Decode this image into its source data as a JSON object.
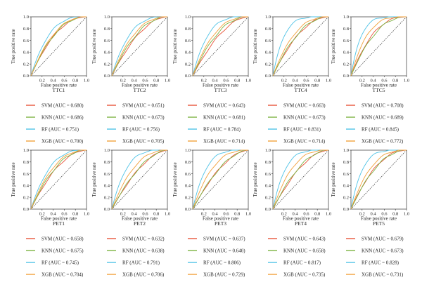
{
  "chart_data": [
    {
      "type": "line",
      "title": "TTC1",
      "xlabel": "False positive rate",
      "ylabel": "True positive rate",
      "xlim": [
        0,
        1
      ],
      "ylim": [
        0,
        1
      ],
      "x_ticks": [
        "0.2",
        "0.4",
        "0.6",
        "0.8",
        "1.0"
      ],
      "y_ticks": [
        "0.0",
        "0.2",
        "0.4",
        "0.6",
        "0.8",
        "1.0"
      ],
      "series": [
        {
          "name": "SVM (AUC = 0.680)",
          "auc": 0.68,
          "color": "#e8553a"
        },
        {
          "name": "KNN (AUC = 0.686)",
          "auc": 0.686,
          "color": "#7cb342"
        },
        {
          "name": "RF (AUC = 0.751)",
          "auc": 0.751,
          "color": "#4fc3e6"
        },
        {
          "name": "XGB (AUC = 0.700)",
          "auc": 0.7,
          "color": "#f2a13b"
        }
      ]
    },
    {
      "type": "line",
      "title": "TTC2",
      "xlabel": "False positive rate",
      "ylabel": "True positive rate",
      "xlim": [
        0,
        1
      ],
      "ylim": [
        0,
        1
      ],
      "x_ticks": [
        "0.2",
        "0.4",
        "0.6",
        "0.8",
        "1.0"
      ],
      "y_ticks": [
        "0.0",
        "0.2",
        "0.4",
        "0.6",
        "0.8",
        "1.0"
      ],
      "series": [
        {
          "name": "SVM (AUC = 0.651)",
          "auc": 0.651,
          "color": "#e8553a"
        },
        {
          "name": "KNN (AUC = 0.673)",
          "auc": 0.673,
          "color": "#7cb342"
        },
        {
          "name": "RF (AUC = 0.756)",
          "auc": 0.756,
          "color": "#4fc3e6"
        },
        {
          "name": "XGB (AUC = 0.705)",
          "auc": 0.705,
          "color": "#f2a13b"
        }
      ]
    },
    {
      "type": "line",
      "title": "TTC3",
      "xlabel": "False positive rate",
      "ylabel": "True positive rate",
      "xlim": [
        0,
        1
      ],
      "ylim": [
        0,
        1
      ],
      "x_ticks": [
        "0.2",
        "0.4",
        "0.6",
        "0.8",
        "1.0"
      ],
      "y_ticks": [
        "0.0",
        "0.2",
        "0.4",
        "0.6",
        "0.8",
        "1.0"
      ],
      "series": [
        {
          "name": "SVM (AUC = 0.643)",
          "auc": 0.643,
          "color": "#e8553a"
        },
        {
          "name": "KNN (AUC = 0.681)",
          "auc": 0.681,
          "color": "#7cb342"
        },
        {
          "name": "RF (AUC = 0.784)",
          "auc": 0.784,
          "color": "#4fc3e6"
        },
        {
          "name": "XGB (AUC = 0.714)",
          "auc": 0.714,
          "color": "#f2a13b"
        }
      ]
    },
    {
      "type": "line",
      "title": "TTC4",
      "xlabel": "False positive rate",
      "ylabel": "True positive rate",
      "xlim": [
        0,
        1
      ],
      "ylim": [
        0,
        1
      ],
      "x_ticks": [
        "0.2",
        "0.4",
        "0.6",
        "0.8",
        "1.0"
      ],
      "y_ticks": [
        "0.0",
        "0.2",
        "0.4",
        "0.6",
        "0.8",
        "1.0"
      ],
      "series": [
        {
          "name": "SVM (AUC = 0.663)",
          "auc": 0.663,
          "color": "#e8553a"
        },
        {
          "name": "KNN (AUC = 0.673)",
          "auc": 0.673,
          "color": "#7cb342"
        },
        {
          "name": "RF (AUC = 0.831)",
          "auc": 0.831,
          "color": "#4fc3e6"
        },
        {
          "name": "XGB (AUC = 0.714)",
          "auc": 0.714,
          "color": "#f2a13b"
        }
      ]
    },
    {
      "type": "line",
      "title": "TTC5",
      "xlabel": "False positive rate",
      "ylabel": "True positive rate",
      "xlim": [
        0,
        1
      ],
      "ylim": [
        0,
        1
      ],
      "x_ticks": [
        "0.2",
        "0.4",
        "0.6",
        "0.8",
        "1.0"
      ],
      "y_ticks": [
        "0.0",
        "0.2",
        "0.4",
        "0.6",
        "0.8",
        "1.0"
      ],
      "series": [
        {
          "name": "SVM (AUC = 0.708)",
          "auc": 0.708,
          "color": "#e8553a"
        },
        {
          "name": "KNN (AUC = 0.689)",
          "auc": 0.689,
          "color": "#7cb342"
        },
        {
          "name": "RF (AUC = 0.845)",
          "auc": 0.845,
          "color": "#4fc3e6"
        },
        {
          "name": "XGB (AUC = 0.772)",
          "auc": 0.772,
          "color": "#f2a13b"
        }
      ]
    },
    {
      "type": "line",
      "title": "PET1",
      "xlabel": "False positive rate",
      "ylabel": "True positive rate",
      "xlim": [
        0,
        1
      ],
      "ylim": [
        0,
        1
      ],
      "x_ticks": [
        "0.2",
        "0.4",
        "0.6",
        "0.8",
        "1.0"
      ],
      "y_ticks": [
        "0.0",
        "0.2",
        "0.4",
        "0.6",
        "0.8",
        "1.0"
      ],
      "series": [
        {
          "name": "SVM (AUC = 0.658)",
          "auc": 0.658,
          "color": "#e8553a"
        },
        {
          "name": "KNN (AUC = 0.675)",
          "auc": 0.675,
          "color": "#7cb342"
        },
        {
          "name": "RF (AUC = 0.745)",
          "auc": 0.745,
          "color": "#4fc3e6"
        },
        {
          "name": "XGB (AUC = 0.704)",
          "auc": 0.704,
          "color": "#f2a13b"
        }
      ]
    },
    {
      "type": "line",
      "title": "PET2",
      "xlabel": "False positive rate",
      "ylabel": "True positive rate",
      "xlim": [
        0,
        1
      ],
      "ylim": [
        0,
        1
      ],
      "x_ticks": [
        "0.2",
        "0.4",
        "0.6",
        "0.8",
        "1.0"
      ],
      "y_ticks": [
        "0.0",
        "0.2",
        "0.4",
        "0.6",
        "0.8",
        "1.0"
      ],
      "series": [
        {
          "name": "SVM (AUC = 0.632)",
          "auc": 0.632,
          "color": "#e8553a"
        },
        {
          "name": "KNN (AUC = 0.638)",
          "auc": 0.638,
          "color": "#7cb342"
        },
        {
          "name": "RF (AUC = 0.791)",
          "auc": 0.791,
          "color": "#4fc3e6"
        },
        {
          "name": "XGB (AUC = 0.706)",
          "auc": 0.706,
          "color": "#f2a13b"
        }
      ]
    },
    {
      "type": "line",
      "title": "PET3",
      "xlabel": "False positive rate",
      "ylabel": "True positive rate",
      "xlim": [
        0,
        1
      ],
      "ylim": [
        0,
        1
      ],
      "x_ticks": [
        "0.2",
        "0.4",
        "0.6",
        "0.8",
        "1.0"
      ],
      "y_ticks": [
        "0.0",
        "0.2",
        "0.4",
        "0.6",
        "0.8",
        "1.0"
      ],
      "series": [
        {
          "name": "SVM (AUC = 0.637)",
          "auc": 0.637,
          "color": "#e8553a"
        },
        {
          "name": "KNN (AUC = 0.640)",
          "auc": 0.64,
          "color": "#7cb342"
        },
        {
          "name": "RF (AUC = 0.806)",
          "auc": 0.806,
          "color": "#4fc3e6"
        },
        {
          "name": "XGB (AUC = 0.729)",
          "auc": 0.729,
          "color": "#f2a13b"
        }
      ]
    },
    {
      "type": "line",
      "title": "PET4",
      "xlabel": "False positive rate",
      "ylabel": "True positive rate",
      "xlim": [
        0,
        1
      ],
      "ylim": [
        0,
        1
      ],
      "x_ticks": [
        "0.2",
        "0.4",
        "0.6",
        "0.8",
        "1.0"
      ],
      "y_ticks": [
        "0.0",
        "0.2",
        "0.4",
        "0.6",
        "0.8",
        "1.0"
      ],
      "series": [
        {
          "name": "SVM (AUC = 0.643)",
          "auc": 0.643,
          "color": "#e8553a"
        },
        {
          "name": "KNN (AUC = 0.658)",
          "auc": 0.658,
          "color": "#7cb342"
        },
        {
          "name": "RF (AUC = 0.817)",
          "auc": 0.817,
          "color": "#4fc3e6"
        },
        {
          "name": "XGB (AUC = 0.735)",
          "auc": 0.735,
          "color": "#f2a13b"
        }
      ]
    },
    {
      "type": "line",
      "title": "PET5",
      "xlabel": "False positive rate",
      "ylabel": "True positive rate",
      "xlim": [
        0,
        1
      ],
      "ylim": [
        0,
        1
      ],
      "x_ticks": [
        "0.2",
        "0.4",
        "0.6",
        "0.8",
        "1.0"
      ],
      "y_ticks": [
        "0.0",
        "0.2",
        "0.4",
        "0.6",
        "0.8",
        "1.0"
      ],
      "series": [
        {
          "name": "SVM (AUC = 0.679)",
          "auc": 0.679,
          "color": "#e8553a"
        },
        {
          "name": "KNN (AUC = 0.673)",
          "auc": 0.673,
          "color": "#7cb342"
        },
        {
          "name": "RF (AUC = 0.828)",
          "auc": 0.828,
          "color": "#4fc3e6"
        },
        {
          "name": "XGB (AUC = 0.731)",
          "auc": 0.731,
          "color": "#f2a13b"
        }
      ]
    }
  ]
}
